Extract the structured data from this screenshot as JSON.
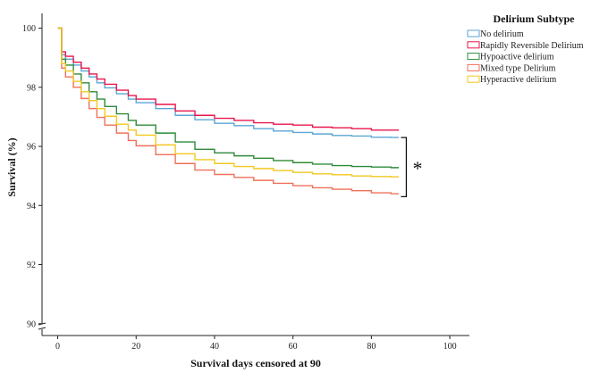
{
  "chart_data": {
    "type": "line",
    "step": true,
    "title": "",
    "xlabel": "Survival days censored at 90",
    "ylabel": "Survival (%)",
    "xlim": [
      -4,
      105
    ],
    "ylim": [
      89.6,
      100.5
    ],
    "axis_break": true,
    "x_ticks": [
      0,
      20,
      40,
      60,
      80,
      100
    ],
    "y_ticks": [
      90,
      92,
      94,
      96,
      98,
      100
    ],
    "grid": false,
    "legend": {
      "title": "Delirium Subtype",
      "placement": "top-right"
    },
    "significance": {
      "symbol": "*",
      "y_range": [
        94.3,
        96.3
      ],
      "x": 88
    },
    "series": [
      {
        "name": "No delirium",
        "color": "#5aa6d6",
        "points": [
          [
            0,
            100
          ],
          [
            1,
            100
          ],
          [
            1,
            99.1
          ],
          [
            2,
            98.95
          ],
          [
            4,
            98.75
          ],
          [
            6,
            98.55
          ],
          [
            8,
            98.35
          ],
          [
            10,
            98.15
          ],
          [
            12,
            97.98
          ],
          [
            15,
            97.78
          ],
          [
            18,
            97.6
          ],
          [
            20,
            97.48
          ],
          [
            25,
            97.28
          ],
          [
            30,
            97.05
          ],
          [
            35,
            96.9
          ],
          [
            40,
            96.78
          ],
          [
            45,
            96.7
          ],
          [
            50,
            96.6
          ],
          [
            55,
            96.52
          ],
          [
            60,
            96.47
          ],
          [
            65,
            96.42
          ],
          [
            70,
            96.37
          ],
          [
            75,
            96.35
          ],
          [
            80,
            96.31
          ],
          [
            85,
            96.3
          ],
          [
            87,
            96.3
          ]
        ]
      },
      {
        "name": "Rapidly Reversible Delirium",
        "color": "#e8174d",
        "points": [
          [
            0,
            100
          ],
          [
            1,
            100
          ],
          [
            1,
            99.2
          ],
          [
            2,
            99.05
          ],
          [
            4,
            98.85
          ],
          [
            6,
            98.65
          ],
          [
            8,
            98.45
          ],
          [
            10,
            98.28
          ],
          [
            12,
            98.1
          ],
          [
            15,
            97.9
          ],
          [
            18,
            97.72
          ],
          [
            20,
            97.6
          ],
          [
            25,
            97.42
          ],
          [
            30,
            97.2
          ],
          [
            35,
            97.05
          ],
          [
            40,
            96.95
          ],
          [
            45,
            96.88
          ],
          [
            50,
            96.8
          ],
          [
            55,
            96.75
          ],
          [
            60,
            96.72
          ],
          [
            65,
            96.65
          ],
          [
            70,
            96.63
          ],
          [
            75,
            96.6
          ],
          [
            80,
            96.55
          ],
          [
            85,
            96.55
          ],
          [
            87,
            96.55
          ]
        ]
      },
      {
        "name": "Hypoactive delirium",
        "color": "#2e8b3a",
        "points": [
          [
            0,
            100
          ],
          [
            1,
            100
          ],
          [
            1,
            98.95
          ],
          [
            2,
            98.75
          ],
          [
            4,
            98.45
          ],
          [
            6,
            98.15
          ],
          [
            8,
            97.85
          ],
          [
            10,
            97.6
          ],
          [
            12,
            97.35
          ],
          [
            15,
            97.1
          ],
          [
            18,
            96.88
          ],
          [
            20,
            96.72
          ],
          [
            25,
            96.45
          ],
          [
            30,
            96.15
          ],
          [
            35,
            95.9
          ],
          [
            40,
            95.78
          ],
          [
            45,
            95.68
          ],
          [
            50,
            95.6
          ],
          [
            55,
            95.52
          ],
          [
            60,
            95.45
          ],
          [
            65,
            95.4
          ],
          [
            70,
            95.35
          ],
          [
            75,
            95.32
          ],
          [
            80,
            95.3
          ],
          [
            85,
            95.28
          ],
          [
            87,
            95.28
          ]
        ]
      },
      {
        "name": "Mixed type Delirium",
        "color": "#f0705a",
        "points": [
          [
            0,
            100
          ],
          [
            1,
            100
          ],
          [
            1,
            98.65
          ],
          [
            2,
            98.35
          ],
          [
            4,
            98.0
          ],
          [
            6,
            97.62
          ],
          [
            8,
            97.28
          ],
          [
            10,
            96.98
          ],
          [
            12,
            96.72
          ],
          [
            15,
            96.45
          ],
          [
            18,
            96.2
          ],
          [
            20,
            96.02
          ],
          [
            25,
            95.72
          ],
          [
            30,
            95.42
          ],
          [
            35,
            95.2
          ],
          [
            40,
            95.05
          ],
          [
            45,
            94.95
          ],
          [
            50,
            94.85
          ],
          [
            55,
            94.75
          ],
          [
            60,
            94.67
          ],
          [
            65,
            94.6
          ],
          [
            70,
            94.55
          ],
          [
            75,
            94.5
          ],
          [
            80,
            94.43
          ],
          [
            85,
            94.4
          ],
          [
            87,
            94.4
          ]
        ]
      },
      {
        "name": "Hyperactive delirium",
        "color": "#f2c81f",
        "points": [
          [
            0,
            100
          ],
          [
            1,
            100
          ],
          [
            1,
            98.8
          ],
          [
            2,
            98.55
          ],
          [
            4,
            98.2
          ],
          [
            6,
            97.85
          ],
          [
            8,
            97.55
          ],
          [
            10,
            97.28
          ],
          [
            12,
            97.02
          ],
          [
            15,
            96.75
          ],
          [
            18,
            96.55
          ],
          [
            20,
            96.38
          ],
          [
            25,
            96.05
          ],
          [
            30,
            95.75
          ],
          [
            35,
            95.55
          ],
          [
            40,
            95.42
          ],
          [
            45,
            95.32
          ],
          [
            50,
            95.25
          ],
          [
            55,
            95.18
          ],
          [
            60,
            95.12
          ],
          [
            65,
            95.07
          ],
          [
            70,
            95.04
          ],
          [
            75,
            95.0
          ],
          [
            80,
            94.98
          ],
          [
            85,
            94.97
          ],
          [
            87,
            94.97
          ]
        ]
      }
    ]
  }
}
